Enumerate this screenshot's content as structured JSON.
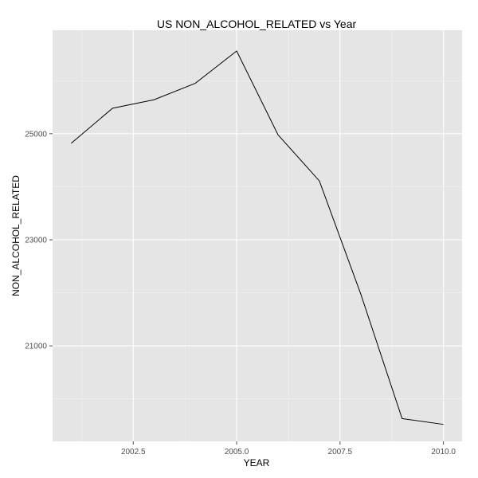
{
  "chart_data": {
    "type": "line",
    "title": "US NON_ALCOHOL_RELATED vs Year",
    "xlabel": "YEAR",
    "ylabel": "NON_ALCOHOL_RELATED",
    "x": [
      2001,
      2002,
      2003,
      2004,
      2005,
      2006,
      2007,
      2008,
      2009,
      2010
    ],
    "series": [
      {
        "values": [
          24820,
          25480,
          25640,
          25950,
          26560,
          24980,
          24110,
          21980,
          19630,
          19520
        ]
      }
    ],
    "xlim": [
      2000.55,
      2010.45
    ],
    "ylim": [
      19200,
      26950
    ],
    "x_ticks": [
      2002.5,
      2005.0,
      2007.5,
      2010.0
    ],
    "x_tick_labels": [
      "2002.5",
      "2005.0",
      "2007.5",
      "2010.0"
    ],
    "y_ticks": [
      21000,
      23000,
      25000
    ],
    "y_tick_labels": [
      "21000",
      "23000",
      "25000"
    ],
    "grid": true,
    "legend": "none",
    "panel_color": "#e5e5e5",
    "line_color": "#000000"
  }
}
